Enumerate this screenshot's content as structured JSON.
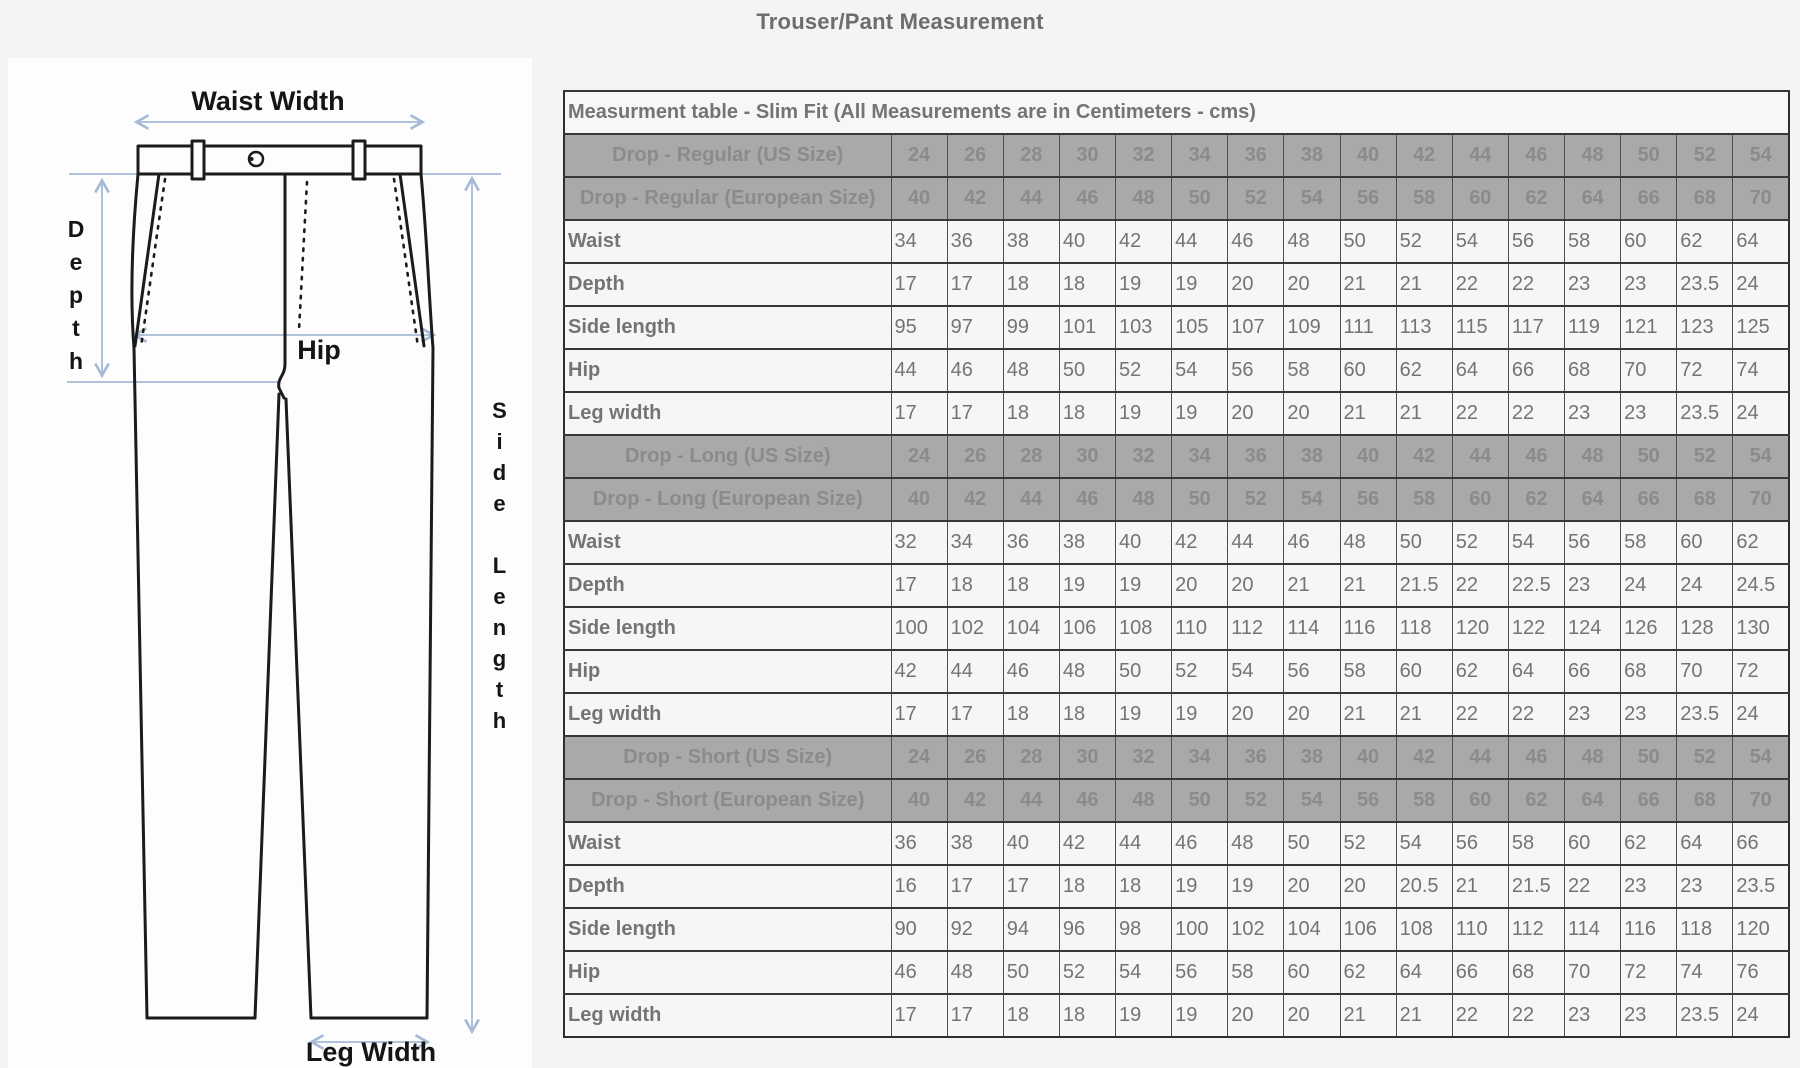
{
  "page_title": "Trouser/Pant Measurement",
  "diagram": {
    "waist_width_label": "Waist Width",
    "depth_label": "Depth",
    "hip_label": "Hip",
    "side_length_label": "Side Length",
    "leg_width_label": "Leg Width"
  },
  "table": {
    "title": "Measurment table - Slim Fit (All Measurements are in Centimeters - cms)",
    "sections": [
      {
        "us_label": "Drop - Regular (US Size)",
        "us_sizes": [
          24,
          26,
          28,
          30,
          32,
          34,
          36,
          38,
          40,
          42,
          44,
          46,
          48,
          50,
          52,
          54
        ],
        "eu_label": "Drop - Regular (European Size)",
        "eu_sizes": [
          40,
          42,
          44,
          46,
          48,
          50,
          52,
          54,
          56,
          58,
          60,
          62,
          64,
          66,
          68,
          70
        ],
        "rows": [
          {
            "label": "Waist",
            "values": [
              34,
              36,
              38,
              40,
              42,
              44,
              46,
              48,
              50,
              52,
              54,
              56,
              58,
              60,
              62,
              64
            ]
          },
          {
            "label": "Depth",
            "values": [
              17,
              17,
              18,
              18,
              19,
              19,
              20,
              20,
              21,
              21,
              22,
              22,
              23,
              23,
              23.5,
              24
            ]
          },
          {
            "label": "Side length",
            "values": [
              95,
              97,
              99,
              101,
              103,
              105,
              107,
              109,
              111,
              113,
              115,
              117,
              119,
              121,
              123,
              125
            ]
          },
          {
            "label": "Hip",
            "values": [
              44,
              46,
              48,
              50,
              52,
              54,
              56,
              58,
              60,
              62,
              64,
              66,
              68,
              70,
              72,
              74
            ]
          },
          {
            "label": "Leg width",
            "values": [
              17,
              17,
              18,
              18,
              19,
              19,
              20,
              20,
              21,
              21,
              22,
              22,
              23,
              23,
              23.5,
              24
            ]
          }
        ]
      },
      {
        "us_label": "Drop - Long (US Size)",
        "us_sizes": [
          24,
          26,
          28,
          30,
          32,
          34,
          36,
          38,
          40,
          42,
          44,
          46,
          48,
          50,
          52,
          54
        ],
        "eu_label": "Drop - Long (European Size)",
        "eu_sizes": [
          40,
          42,
          44,
          46,
          48,
          50,
          52,
          54,
          56,
          58,
          60,
          62,
          64,
          66,
          68,
          70
        ],
        "rows": [
          {
            "label": "Waist",
            "values": [
              32,
              34,
              36,
              38,
              40,
              42,
              44,
              46,
              48,
              50,
              52,
              54,
              56,
              58,
              60,
              62
            ]
          },
          {
            "label": "Depth",
            "values": [
              17,
              18,
              18,
              19,
              19,
              20,
              20,
              21,
              21,
              21.5,
              22,
              22.5,
              23,
              24,
              24,
              24.5
            ]
          },
          {
            "label": "Side length",
            "values": [
              100,
              102,
              104,
              106,
              108,
              110,
              112,
              114,
              116,
              118,
              120,
              122,
              124,
              126,
              128,
              130
            ]
          },
          {
            "label": "Hip",
            "values": [
              42,
              44,
              46,
              48,
              50,
              52,
              54,
              56,
              58,
              60,
              62,
              64,
              66,
              68,
              70,
              72
            ]
          },
          {
            "label": "Leg width",
            "values": [
              17,
              17,
              18,
              18,
              19,
              19,
              20,
              20,
              21,
              21,
              22,
              22,
              23,
              23,
              23.5,
              24
            ]
          }
        ]
      },
      {
        "us_label": "Drop - Short (US Size)",
        "us_sizes": [
          24,
          26,
          28,
          30,
          32,
          34,
          36,
          38,
          40,
          42,
          44,
          46,
          48,
          50,
          52,
          54
        ],
        "eu_label": "Drop - Short (European Size)",
        "eu_sizes": [
          40,
          42,
          44,
          46,
          48,
          50,
          52,
          54,
          56,
          58,
          60,
          62,
          64,
          66,
          68,
          70
        ],
        "rows": [
          {
            "label": "Waist",
            "values": [
              36,
              38,
              40,
              42,
              44,
              46,
              48,
              50,
              52,
              54,
              56,
              58,
              60,
              62,
              64,
              66
            ]
          },
          {
            "label": "Depth",
            "values": [
              16,
              17,
              17,
              18,
              18,
              19,
              19,
              20,
              20,
              20.5,
              21,
              21.5,
              22,
              23,
              23,
              23.5
            ]
          },
          {
            "label": "Side length",
            "values": [
              90,
              92,
              94,
              96,
              98,
              100,
              102,
              104,
              106,
              108,
              110,
              112,
              114,
              116,
              118,
              120
            ]
          },
          {
            "label": "Hip",
            "values": [
              46,
              48,
              50,
              52,
              54,
              56,
              58,
              60,
              62,
              64,
              66,
              68,
              70,
              72,
              74,
              76
            ]
          },
          {
            "label": "Leg width",
            "values": [
              17,
              17,
              18,
              18,
              19,
              19,
              20,
              20,
              21,
              21,
              22,
              22,
              23,
              23,
              23.5,
              24
            ]
          }
        ]
      }
    ]
  },
  "colors": {
    "page_bg": "#f4f4f5",
    "diagram_bg": "#fdfdfd",
    "header_row_bg": "#a9a9a9",
    "header_row_text": "#8b8b8b",
    "guide_arrow": "#a6b9d6",
    "outline": "#1b1b1b"
  }
}
